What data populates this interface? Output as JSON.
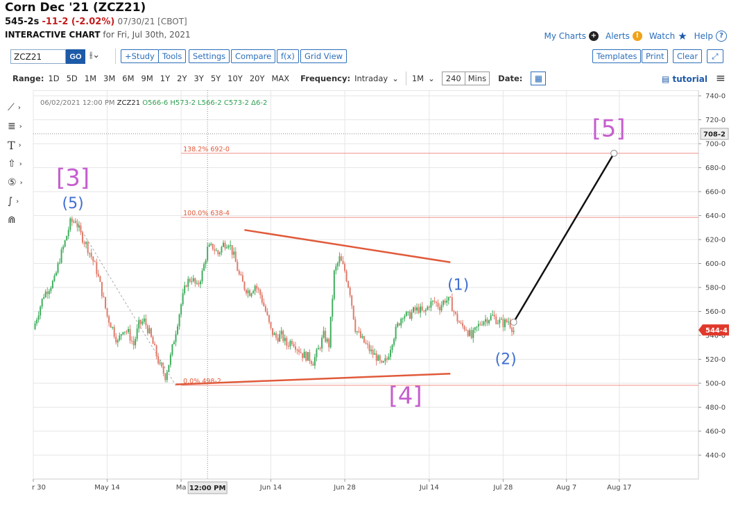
{
  "header": {
    "title": "Corn Dec '21 (ZCZ21)",
    "last": "545-2s",
    "change": "-11-2 (-2.02%)",
    "date_exch": "07/30/21 [CBOT]",
    "sub_bold": "INTERACTIVE CHART",
    "sub_rest": "for Fri, Jul 30th, 2021"
  },
  "top_links": {
    "my_charts": "My Charts",
    "alerts": "Alerts",
    "watch": "Watch",
    "help": "Help"
  },
  "toolbar": {
    "symbol": "ZCZ21",
    "go": "GO",
    "study": "+Study",
    "tools": "Tools",
    "settings": "Settings",
    "compare": "Compare",
    "fx": "f(x)",
    "grid_view": "Grid View",
    "templates": "Templates",
    "print": "Print",
    "clear": "Clear"
  },
  "range": {
    "label": "Range:",
    "options": [
      "1D",
      "5D",
      "1M",
      "3M",
      "6M",
      "9M",
      "1Y",
      "2Y",
      "3Y",
      "5Y",
      "10Y",
      "20Y",
      "MAX"
    ],
    "frequency_label": "Frequency:",
    "frequency": "Intraday",
    "interval": "1M",
    "mins_value": "240",
    "mins_label": "Mins",
    "date_label": "Date:",
    "tutorial": "tutorial"
  },
  "colors": {
    "up": "#3fae5d",
    "down": "#e07b6b",
    "fib": "#f0908a",
    "trend": "#e05a3a",
    "wave_major": "#c55fce",
    "wave_minor": "#3f6fd1",
    "projection": "#111111",
    "price_tag": "#e0392b",
    "link": "#2a6ebb"
  },
  "chart_data": {
    "type": "candlestick",
    "title": "Corn Dec '21 (ZCZ21)",
    "frequency": "240 Mins",
    "y_axis": {
      "min": 420,
      "max": 740,
      "ticks": [
        "740-0",
        "720-0",
        "700-0",
        "680-0",
        "660-0",
        "640-0",
        "620-0",
        "600-0",
        "580-0",
        "560-0",
        "540-0",
        "520-0",
        "500-0",
        "480-0",
        "460-0",
        "440-0"
      ],
      "tick_values": [
        740,
        720,
        700,
        680,
        660,
        640,
        620,
        600,
        580,
        560,
        540,
        520,
        500,
        480,
        460,
        440
      ]
    },
    "x_axis": {
      "ticks": [
        "r 30",
        "May 14",
        "Ma",
        "Jun 14",
        "Jun 28",
        "Jul 14",
        "Jul 28",
        "Aug 7",
        "Aug 17"
      ],
      "tick_days": [
        0,
        14,
        28,
        45,
        59,
        75,
        89,
        101,
        111
      ],
      "day_range": [
        0,
        126
      ]
    },
    "price_path": [
      [
        0,
        545
      ],
      [
        1,
        560
      ],
      [
        2,
        574
      ],
      [
        3,
        580
      ],
      [
        4,
        586
      ],
      [
        5,
        604
      ],
      [
        6,
        618
      ],
      [
        7,
        634
      ],
      [
        8,
        636
      ],
      [
        9,
        624
      ],
      [
        10,
        616
      ],
      [
        11,
        606
      ],
      [
        12,
        594
      ],
      [
        13,
        576
      ],
      [
        14,
        556
      ],
      [
        15,
        546
      ],
      [
        16,
        534
      ],
      [
        17,
        546
      ],
      [
        18,
        542
      ],
      [
        19,
        532
      ],
      [
        20,
        549
      ],
      [
        21,
        552
      ],
      [
        22,
        542
      ],
      [
        23,
        528
      ],
      [
        24,
        514
      ],
      [
        25,
        506
      ],
      [
        26,
        522
      ],
      [
        27,
        544
      ],
      [
        28,
        566
      ],
      [
        29,
        584
      ],
      [
        30,
        588
      ],
      [
        31,
        580
      ],
      [
        32,
        592
      ],
      [
        33,
        612
      ],
      [
        34,
        614
      ],
      [
        35,
        608
      ],
      [
        36,
        616
      ],
      [
        37,
        618
      ],
      [
        38,
        606
      ],
      [
        39,
        590
      ],
      [
        40,
        580
      ],
      [
        41,
        576
      ],
      [
        42,
        582
      ],
      [
        43,
        574
      ],
      [
        44,
        560
      ],
      [
        45,
        544
      ],
      [
        46,
        538
      ],
      [
        47,
        540
      ],
      [
        48,
        532
      ],
      [
        49,
        536
      ],
      [
        50,
        530
      ],
      [
        51,
        524
      ],
      [
        52,
        522
      ],
      [
        53,
        518
      ],
      [
        54,
        528
      ],
      [
        55,
        540
      ],
      [
        56,
        532
      ],
      [
        57,
        592
      ],
      [
        58,
        604
      ],
      [
        59,
        594
      ],
      [
        60,
        576
      ],
      [
        61,
        546
      ],
      [
        62,
        538
      ],
      [
        63,
        532
      ],
      [
        64,
        526
      ],
      [
        65,
        522
      ],
      [
        66,
        514
      ],
      [
        67,
        520
      ],
      [
        68,
        536
      ],
      [
        69,
        548
      ],
      [
        70,
        558
      ],
      [
        71,
        556
      ],
      [
        72,
        560
      ],
      [
        73,
        562
      ],
      [
        74,
        558
      ],
      [
        75,
        566
      ],
      [
        76,
        568
      ],
      [
        77,
        564
      ],
      [
        78,
        570
      ],
      [
        79,
        568
      ],
      [
        80,
        556
      ],
      [
        81,
        548
      ],
      [
        82,
        546
      ],
      [
        83,
        538
      ],
      [
        84,
        546
      ],
      [
        85,
        552
      ],
      [
        86,
        554
      ],
      [
        87,
        556
      ],
      [
        88,
        552
      ],
      [
        89,
        550
      ],
      [
        90,
        552
      ],
      [
        91,
        544
      ]
    ],
    "info_bar": {
      "date": "06/02/2021 12:00 PM",
      "symbol": "ZCZ21",
      "ohlc": "O566-6 H573-2 L566-2 C573-2 Δ6-2"
    },
    "fib_levels": [
      {
        "label": "138.2% 692-0",
        "value": 692,
        "start_day": 28
      },
      {
        "label": "100.0% 638-4",
        "value": 638.5,
        "start_day": 28
      },
      {
        "label": "0.0% 498-2",
        "value": 498.25,
        "start_day": 28
      }
    ],
    "trendlines": [
      {
        "from": [
          40,
          628
        ],
        "to": [
          79,
          601
        ]
      },
      {
        "from": [
          27,
          499
        ],
        "to": [
          79,
          508
        ]
      }
    ],
    "projection": {
      "from": [
        91,
        551
      ],
      "to": [
        110,
        692
      ]
    },
    "dashed_leg": {
      "from": [
        8,
        636
      ],
      "to": [
        27,
        498
      ]
    },
    "wave_labels": [
      {
        "text": "[3]",
        "day": 7.5,
        "price": 665,
        "kind": "major"
      },
      {
        "text": "(5)",
        "day": 7.5,
        "price": 646,
        "kind": "minor"
      },
      {
        "text": "[4]",
        "day": 70.5,
        "price": 483,
        "kind": "major"
      },
      {
        "text": "(1)",
        "day": 80.5,
        "price": 578,
        "kind": "minor"
      },
      {
        "text": "(2)",
        "day": 89.5,
        "price": 516,
        "kind": "minor"
      },
      {
        "text": "[5]",
        "day": 109,
        "price": 706,
        "kind": "major"
      }
    ],
    "crosshair": {
      "day": 33,
      "price": 708.25,
      "x_label": "12:00 PM",
      "y_label": "708-2"
    },
    "last_price_tag": {
      "value": 544.5,
      "label": "544-4"
    }
  }
}
